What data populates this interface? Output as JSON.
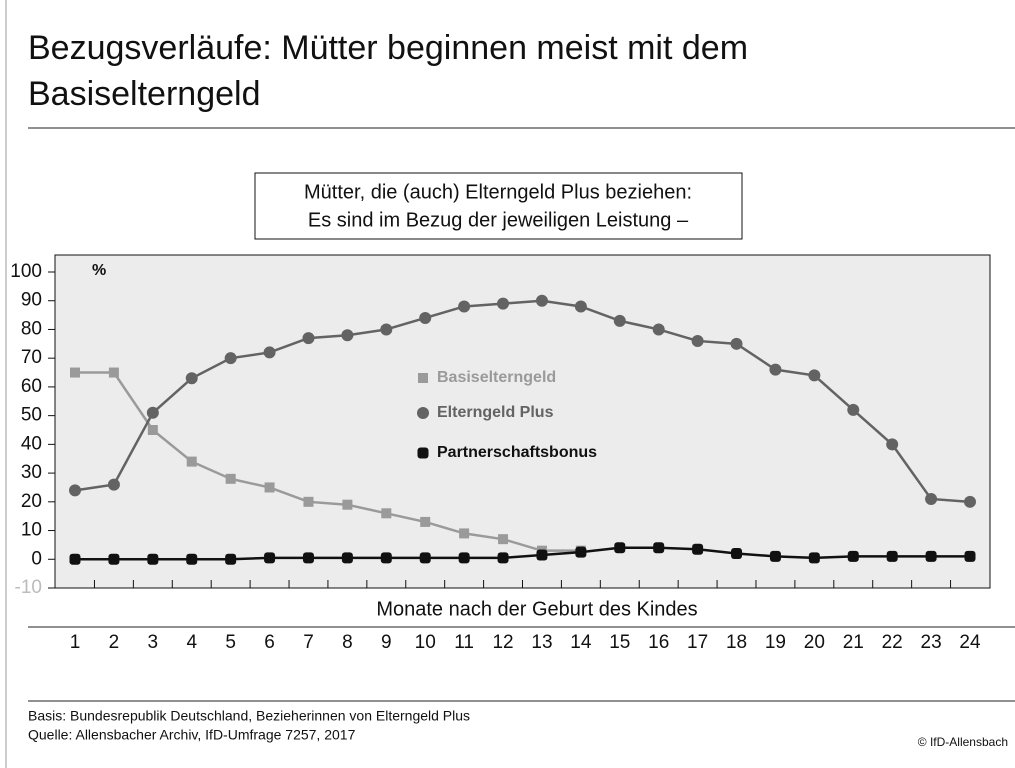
{
  "chart_data": {
    "type": "line",
    "title": [
      "Bezugsverläufe: Mütter beginnen meist mit dem",
      "Basiselterngeld"
    ],
    "subtitle": [
      "Mütter, die (auch) Elterngeld Plus beziehen:",
      "Es sind im Bezug der jeweiligen Leistung –"
    ],
    "y_unit": "%",
    "x_label": "Monate nach der Geburt des Kindes",
    "categories": [
      "1",
      "2",
      "3",
      "4",
      "5",
      "6",
      "7",
      "8",
      "9",
      "10",
      "11",
      "12",
      "13",
      "14",
      "15",
      "16",
      "17",
      "18",
      "19",
      "20",
      "21",
      "22",
      "23",
      "24"
    ],
    "series": [
      {
        "name": "Basiselterngeld",
        "color": "#9a9a9a",
        "marker": "square",
        "values": [
          65,
          65,
          45,
          34,
          28,
          25,
          20,
          19,
          16,
          13,
          9,
          7,
          3,
          3,
          null,
          null,
          null,
          null,
          null,
          null,
          null,
          null,
          null,
          null
        ]
      },
      {
        "name": "Elterngeld Plus",
        "color": "#636363",
        "marker": "circle",
        "values": [
          24,
          26,
          51,
          63,
          70,
          72,
          77,
          78,
          80,
          84,
          88,
          89,
          90,
          88,
          83,
          80,
          76,
          75,
          66,
          64,
          52,
          40,
          21,
          20
        ]
      },
      {
        "name": "Partnerschaftsbonus",
        "color": "#111111",
        "marker": "rounded-square",
        "values": [
          0,
          0,
          0,
          0,
          0,
          0.5,
          0.5,
          0.5,
          0.5,
          0.5,
          0.5,
          0.5,
          1.5,
          2.5,
          4,
          4,
          3.5,
          2,
          1,
          0.5,
          1,
          1,
          1,
          1
        ]
      }
    ],
    "ylim": [
      -10,
      100
    ],
    "yticks": [
      -10,
      0,
      10,
      20,
      30,
      40,
      50,
      60,
      70,
      80,
      90,
      100
    ],
    "footnotes": [
      "Basis: Bundesrepublik Deutschland, Bezieherinnen von Elterngeld Plus",
      "Quelle: Allensbacher Archiv, IfD-Umfrage 7257, 2017"
    ],
    "source": "© IfD-Allensbach"
  }
}
